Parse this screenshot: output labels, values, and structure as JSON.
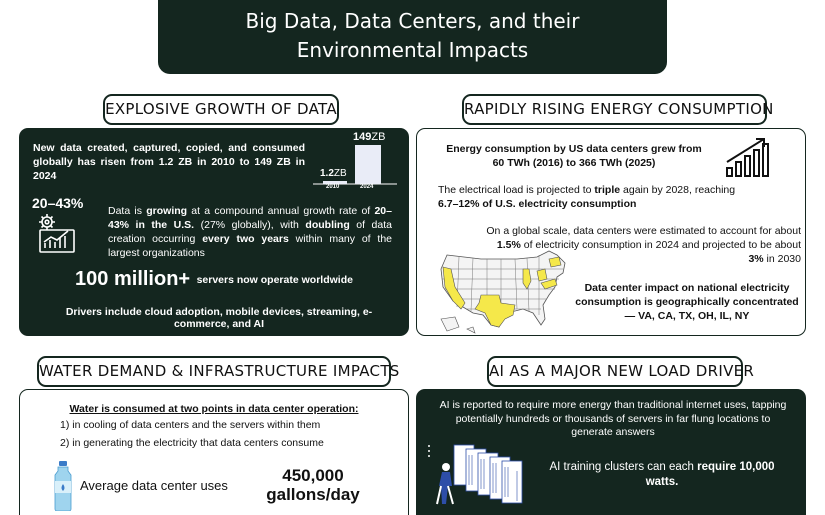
{
  "header": {
    "title_line1": "Big Data, Data Centers, and their",
    "title_line2": "Environmental Impacts"
  },
  "growth": {
    "heading": "EXPLOSIVE GROWTH OF DATA",
    "intro": "New data created, captured, copied, and consumed globally has risen from 1.2 ZB in 2010 to 149 ZB in 2024",
    "chart": {
      "bars": [
        {
          "year": "2010",
          "value_num": "1.2",
          "unit": "ZB"
        },
        {
          "year": "2024",
          "value_num": "149",
          "unit": "ZB"
        }
      ]
    },
    "rate_label": "20–43%",
    "rate_text_1": "Data is ",
    "rate_text_bold1": "growing",
    "rate_text_2": " at a compound annual growth rate of ",
    "rate_text_bold2": "20–43% in the U.S.",
    "rate_text_3": " (27% globally), with ",
    "rate_text_bold3": "doubling",
    "rate_text_4": " of data creation occurring ",
    "rate_text_bold4": "every two years",
    "rate_text_5": " within many of the largest organizations",
    "servers_big": "100 million+",
    "servers_text": "servers now operate worldwide",
    "drivers": "Drivers include cloud adoption, mobile devices, streaming, e-commerce, and AI"
  },
  "energy": {
    "heading": "RAPIDLY RISING ENERGY CONSUMPTION",
    "p1": "Energy consumption by US data centers grew from 60 TWh (2016) to 366 TWh (2025)",
    "p2_a": "The electrical load is projected to ",
    "p2_b": "triple",
    "p2_c": " again by 2028, reaching ",
    "p2_d": "6.7–12% of U.S. electricity consumption",
    "p3_a": "On a global scale, data centers were estimated to account for about ",
    "p3_b": "1.5%",
    "p3_c": " of electricity consumption in 2024 and projected to be about ",
    "p3_d": "3%",
    "p3_e": " in 2030",
    "p4": "Data center impact on national electricity consumption is geographically concentrated — VA, CA, TX, OH, IL, NY",
    "colors": {
      "highlight": "#f5e84a"
    }
  },
  "water": {
    "heading": "WATER DEMAND & INFRASTRUCTURE IMPACTS",
    "title": "Water is consumed at two points in data center operation:",
    "point1": "1) in cooling of data centers and the servers within them",
    "point2": "2) in generating the electricity that data centers consume",
    "avg_label": "Average data center uses",
    "avg_value_1": "450,000",
    "avg_value_2": "gallons/day"
  },
  "ai": {
    "heading": "AI AS A MAJOR NEW LOAD DRIVER",
    "p1": "AI is reported to require more energy than traditional internet uses, tapping potentially hundreds or thousands of servers in far flung locations to generate answers",
    "p2_a": "AI training clusters can each ",
    "p2_b": "require 10,000 watts."
  }
}
